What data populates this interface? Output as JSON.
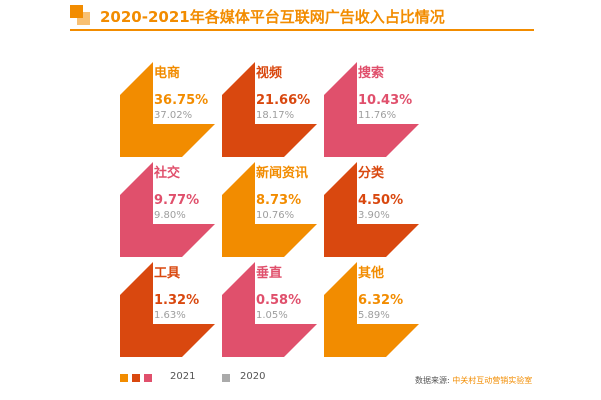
{
  "title": "2020-2021年各媒体平台互联网广告收入占比情况",
  "chart_data": {
    "type": "table",
    "series": [
      {
        "name": "2021",
        "values": [
          36.75,
          21.66,
          10.43,
          9.77,
          8.73,
          4.5,
          1.32,
          0.58,
          6.32
        ]
      },
      {
        "name": "2020",
        "values": [
          37.02,
          18.17,
          11.76,
          9.8,
          10.76,
          3.9,
          1.63,
          1.05,
          5.89
        ]
      }
    ],
    "categories": [
      "电商",
      "视频",
      "搜索",
      "社交",
      "新闻资讯",
      "分类",
      "工具",
      "垂直",
      "其他"
    ],
    "unit": "%",
    "items": [
      {
        "name": "电商",
        "v2021": "36.75%",
        "v2020": "37.02%",
        "color": "#f28c00"
      },
      {
        "name": "视频",
        "v2021": "21.66%",
        "v2020": "18.17%",
        "color": "#d9480f"
      },
      {
        "name": "搜索",
        "v2021": "10.43%",
        "v2020": "11.76%",
        "color": "#e0506c"
      },
      {
        "name": "社交",
        "v2021": "9.77%",
        "v2020": "9.80%",
        "color": "#e0506c"
      },
      {
        "name": "新闻资讯",
        "v2021": "8.73%",
        "v2020": "10.76%",
        "color": "#f28c00"
      },
      {
        "name": "分类",
        "v2021": "4.50%",
        "v2020": "3.90%",
        "color": "#d9480f"
      },
      {
        "name": "工具",
        "v2021": "1.32%",
        "v2020": "1.63%",
        "color": "#d9480f"
      },
      {
        "name": "垂直",
        "v2021": "0.58%",
        "v2020": "1.05%",
        "color": "#e0506c"
      },
      {
        "name": "其他",
        "v2021": "6.32%",
        "v2020": "5.89%",
        "color": "#f28c00"
      }
    ]
  },
  "legend": {
    "label_2021": "2021",
    "label_2020": "2020",
    "colors_2021": [
      "#f28c00",
      "#d9480f",
      "#e0506c"
    ],
    "color_2020": "#aaaaaa"
  },
  "source": {
    "label": "数据来源:",
    "name": "中关村互动营销实验室"
  }
}
